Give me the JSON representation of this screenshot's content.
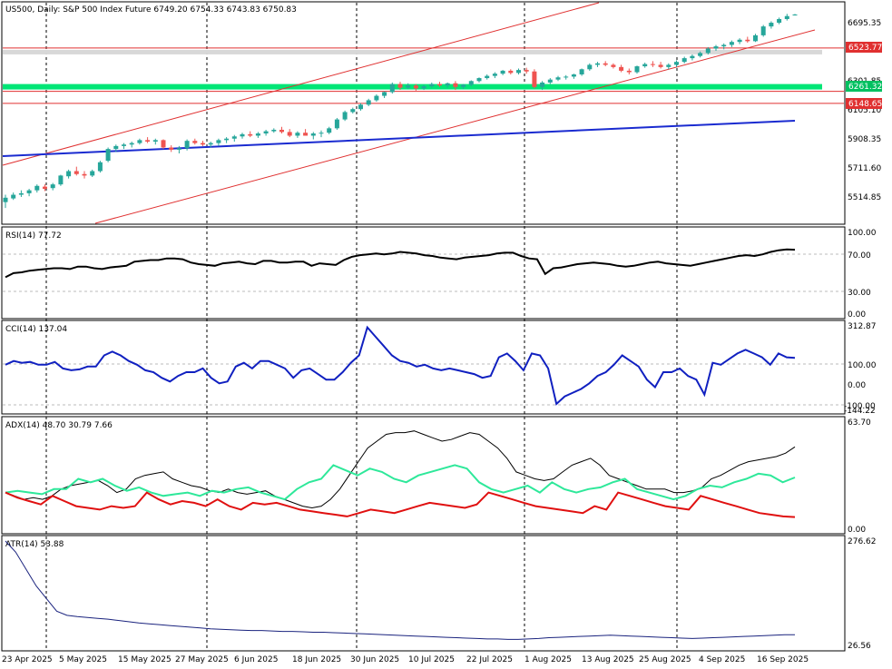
{
  "main": {
    "header": "US500, Daily:  S&P 500  Index Future  6749.20 6754.33 6743.83 6750.83",
    "y_labels": [
      "6695.35",
      "6301.85",
      "6105.10",
      "5908.35",
      "5711.60",
      "5514.85"
    ],
    "levels": [
      {
        "value": 6523.77,
        "label": "6523.77",
        "color": "#e03030"
      },
      {
        "value": 6261.32,
        "label": "6261.32",
        "color": "#00e676"
      },
      {
        "value": 6148.65,
        "label": "6148.65",
        "color": "#e03030"
      }
    ],
    "ylim": [
      5440,
      6810
    ]
  },
  "x_axis": {
    "labels": [
      "23 Apr 2025",
      "5 May 2025",
      "15 May 2025",
      "27 May 2025",
      "6 Jun 2025",
      "18 Jun 2025",
      "30 Jun 2025",
      "10 Jul 2025",
      "22 Jul 2025",
      "1 Aug 2025",
      "13 Aug 2025",
      "25 Aug 2025",
      "4 Sep 2025",
      "16 Sep 2025"
    ]
  },
  "rsi": {
    "header": "RSI(14) 77.72",
    "y_labels": [
      "100.00",
      "70.00",
      "30.00",
      "0.00"
    ]
  },
  "cci": {
    "header": "CCI(14) 137.04",
    "y_labels": [
      "312.87",
      "100.00",
      "0.00",
      "-100.00",
      "-144.22"
    ]
  },
  "adx": {
    "header": "ADX(14) 48.70 30.79 7.66",
    "y_labels": [
      "63.70",
      "0.00"
    ]
  },
  "atr": {
    "header": "ATR(14) 53.88",
    "y_labels": [
      "276.62",
      "26.56"
    ]
  },
  "colors": {
    "bull": "#26a69a",
    "bear": "#ef5350",
    "channel": "#e03030",
    "trend": "#1a2bd0",
    "rsi": "#000000",
    "cci": "#1020c0",
    "adx": "#000000",
    "di_plus": "#2ee89a",
    "di_minus": "#e01010",
    "atr": "#1a237e"
  },
  "chart_data": [
    {
      "type": "candlestick",
      "title": "US500, Daily: S&P 500 Index Future",
      "ylim": [
        5440,
        6810
      ],
      "candles": [
        [
          5480,
          5530,
          5440,
          5510
        ],
        [
          5505,
          5545,
          5495,
          5530
        ],
        [
          5530,
          5560,
          5515,
          5540
        ],
        [
          5540,
          5570,
          5520,
          5560
        ],
        [
          5560,
          5600,
          5545,
          5590
        ],
        [
          5585,
          5600,
          5555,
          5570
        ],
        [
          5575,
          5610,
          5560,
          5600
        ],
        [
          5600,
          5665,
          5590,
          5660
        ],
        [
          5655,
          5700,
          5640,
          5690
        ],
        [
          5690,
          5720,
          5660,
          5670
        ],
        [
          5670,
          5690,
          5640,
          5660
        ],
        [
          5660,
          5700,
          5650,
          5690
        ],
        [
          5690,
          5760,
          5680,
          5750
        ],
        [
          5760,
          5850,
          5750,
          5840
        ],
        [
          5840,
          5870,
          5820,
          5860
        ],
        [
          5860,
          5880,
          5840,
          5870
        ],
        [
          5870,
          5890,
          5850,
          5880
        ],
        [
          5880,
          5910,
          5870,
          5900
        ],
        [
          5900,
          5920,
          5880,
          5890
        ],
        [
          5890,
          5910,
          5870,
          5900
        ],
        [
          5900,
          5905,
          5840,
          5850
        ],
        [
          5850,
          5865,
          5820,
          5835
        ],
        [
          5835,
          5860,
          5810,
          5845
        ],
        [
          5845,
          5905,
          5830,
          5895
        ],
        [
          5895,
          5910,
          5870,
          5880
        ],
        [
          5880,
          5895,
          5860,
          5870
        ],
        [
          5870,
          5890,
          5850,
          5880
        ],
        [
          5880,
          5910,
          5860,
          5900
        ],
        [
          5900,
          5920,
          5880,
          5910
        ],
        [
          5910,
          5935,
          5890,
          5925
        ],
        [
          5925,
          5950,
          5910,
          5940
        ],
        [
          5940,
          5960,
          5920,
          5930
        ],
        [
          5930,
          5955,
          5915,
          5945
        ],
        [
          5945,
          5970,
          5930,
          5960
        ],
        [
          5960,
          5980,
          5950,
          5970
        ],
        [
          5970,
          5990,
          5945,
          5955
        ],
        [
          5955,
          5975,
          5920,
          5930
        ],
        [
          5930,
          5960,
          5915,
          5950
        ],
        [
          5950,
          5975,
          5930,
          5930
        ],
        [
          5930,
          5955,
          5905,
          5945
        ],
        [
          5945,
          5965,
          5920,
          5950
        ],
        [
          5950,
          5990,
          5940,
          5980
        ],
        [
          5980,
          6050,
          5970,
          6040
        ],
        [
          6040,
          6100,
          6030,
          6090
        ],
        [
          6090,
          6120,
          6080,
          6110
        ],
        [
          6110,
          6150,
          6100,
          6140
        ],
        [
          6140,
          6180,
          6130,
          6170
        ],
        [
          6170,
          6210,
          6160,
          6200
        ],
        [
          6200,
          6230,
          6185,
          6225
        ],
        [
          6225,
          6290,
          6215,
          6280
        ],
        [
          6280,
          6295,
          6240,
          6255
        ],
        [
          6255,
          6285,
          6245,
          6270
        ],
        [
          6270,
          6280,
          6235,
          6250
        ],
        [
          6250,
          6275,
          6240,
          6265
        ],
        [
          6265,
          6290,
          6255,
          6280
        ],
        [
          6280,
          6295,
          6260,
          6270
        ],
        [
          6270,
          6290,
          6255,
          6285
        ],
        [
          6285,
          6300,
          6240,
          6260
        ],
        [
          6260,
          6280,
          6245,
          6275
        ],
        [
          6275,
          6305,
          6265,
          6300
        ],
        [
          6300,
          6325,
          6290,
          6320
        ],
        [
          6320,
          6345,
          6310,
          6335
        ],
        [
          6335,
          6360,
          6320,
          6350
        ],
        [
          6350,
          6375,
          6340,
          6370
        ],
        [
          6370,
          6380,
          6345,
          6355
        ],
        [
          6355,
          6385,
          6345,
          6375
        ],
        [
          6375,
          6390,
          6350,
          6365
        ],
        [
          6365,
          6380,
          6250,
          6260
        ],
        [
          6260,
          6300,
          6240,
          6290
        ],
        [
          6290,
          6320,
          6280,
          6310
        ],
        [
          6310,
          6335,
          6300,
          6325
        ],
        [
          6325,
          6340,
          6310,
          6330
        ],
        [
          6330,
          6350,
          6315,
          6345
        ],
        [
          6345,
          6385,
          6335,
          6380
        ],
        [
          6380,
          6420,
          6370,
          6410
        ],
        [
          6410,
          6430,
          6395,
          6420
        ],
        [
          6420,
          6435,
          6400,
          6410
        ],
        [
          6410,
          6420,
          6385,
          6395
        ],
        [
          6395,
          6410,
          6360,
          6370
        ],
        [
          6370,
          6385,
          6345,
          6360
        ],
        [
          6360,
          6405,
          6350,
          6400
        ],
        [
          6400,
          6425,
          6390,
          6415
        ],
        [
          6415,
          6435,
          6395,
          6410
        ],
        [
          6410,
          6430,
          6385,
          6395
        ],
        [
          6395,
          6420,
          6380,
          6410
        ],
        [
          6410,
          6440,
          6395,
          6430
        ],
        [
          6430,
          6465,
          6420,
          6455
        ],
        [
          6455,
          6480,
          6440,
          6470
        ],
        [
          6470,
          6500,
          6460,
          6490
        ],
        [
          6490,
          6530,
          6480,
          6520
        ],
        [
          6520,
          6545,
          6505,
          6535
        ],
        [
          6535,
          6555,
          6515,
          6545
        ],
        [
          6545,
          6575,
          6530,
          6565
        ],
        [
          6565,
          6590,
          6550,
          6580
        ],
        [
          6580,
          6600,
          6560,
          6570
        ],
        [
          6570,
          6620,
          6565,
          6610
        ],
        [
          6610,
          6680,
          6600,
          6670
        ],
        [
          6670,
          6705,
          6655,
          6695
        ],
        [
          6695,
          6730,
          6685,
          6720
        ],
        [
          6720,
          6755,
          6710,
          6740
        ],
        [
          6749.2,
          6754.33,
          6743.83,
          6750.83
        ]
      ],
      "horizontal_levels": [
        6523.77,
        6261.32,
        6148.65
      ],
      "y_tick_labels": [
        "6695.35",
        "6301.85",
        "6105.10",
        "5908.35",
        "5711.60",
        "5514.85"
      ]
    },
    {
      "type": "line",
      "title": "RSI(14) 77.72",
      "ylim": [
        0,
        100
      ],
      "series": [
        {
          "values": [
            44,
            49,
            50,
            52,
            53,
            54,
            55,
            55,
            54,
            57,
            57,
            55,
            54,
            56,
            57,
            58,
            63,
            64,
            65,
            65,
            67,
            67,
            66,
            62,
            60,
            59,
            58,
            61,
            62,
            63,
            61,
            60,
            64,
            64,
            62,
            62,
            63,
            63,
            58,
            61,
            60,
            59,
            65,
            69,
            71,
            72,
            73,
            72,
            73,
            75,
            74,
            73,
            71,
            70,
            68,
            67,
            66,
            68,
            69,
            70,
            71,
            73,
            74,
            74,
            70,
            67,
            66,
            48,
            55,
            56,
            58,
            60,
            61,
            62,
            61,
            60,
            58,
            57,
            58,
            60,
            62,
            63,
            61,
            60,
            59,
            58,
            60,
            62,
            64,
            66,
            68,
            70,
            71,
            70,
            72,
            75,
            77,
            78,
            77.72
          ]
        }
      ]
    },
    {
      "type": "line",
      "title": "CCI(14) 137.04",
      "ylim": [
        -144.22,
        312.87
      ],
      "series": [
        {
          "values": [
            100,
            120,
            110,
            115,
            100,
            100,
            115,
            80,
            70,
            75,
            90,
            90,
            150,
            170,
            150,
            120,
            100,
            70,
            60,
            30,
            10,
            40,
            60,
            60,
            80,
            30,
            0,
            10,
            90,
            110,
            80,
            120,
            120,
            100,
            80,
            30,
            70,
            80,
            50,
            20,
            20,
            60,
            110,
            150,
            300,
            250,
            200,
            150,
            120,
            110,
            90,
            100,
            80,
            70,
            80,
            70,
            60,
            50,
            30,
            40,
            140,
            160,
            120,
            70,
            160,
            150,
            80,
            -110,
            -70,
            -50,
            -30,
            0,
            40,
            60,
            100,
            150,
            120,
            90,
            20,
            -20,
            60,
            60,
            80,
            40,
            20,
            -60,
            110,
            100,
            130,
            160,
            180,
            160,
            140,
            100,
            160,
            140,
            137.04
          ]
        }
      ]
    },
    {
      "type": "line",
      "title": "ADX(14) 48.70 30.79 7.66",
      "ylim": [
        0,
        63.7
      ],
      "series": [
        {
          "values": [
            22,
            20,
            18,
            19,
            18,
            20,
            24,
            26,
            27,
            28,
            29,
            26,
            22,
            24,
            30,
            32,
            33,
            34,
            30,
            28,
            26,
            25,
            23,
            22,
            24,
            22,
            21,
            22,
            23,
            20,
            18,
            16,
            14,
            13,
            14,
            18,
            24,
            32,
            40,
            48,
            52,
            56,
            57,
            57,
            58,
            56,
            54,
            52,
            53,
            55,
            57,
            56,
            52,
            48,
            42,
            34,
            32,
            30,
            29,
            30,
            34,
            38,
            40,
            42,
            38,
            32,
            30,
            28,
            26,
            24,
            24,
            24,
            22,
            22,
            23,
            25,
            30,
            32,
            35,
            38,
            40,
            41,
            42,
            43,
            45,
            48.7
          ]
        },
        {
          "values": [
            22,
            23,
            22,
            21,
            24,
            24,
            30,
            28,
            30,
            26,
            23,
            25,
            22,
            20,
            21,
            22,
            20,
            23,
            22,
            24,
            25,
            22,
            20,
            18,
            24,
            28,
            30,
            38,
            35,
            32,
            36,
            34,
            30,
            28,
            32,
            34,
            36,
            38,
            36,
            28,
            24,
            22,
            24,
            26,
            22,
            28,
            24,
            22,
            24,
            25,
            28,
            30,
            24,
            22,
            20,
            18,
            20,
            24,
            26,
            25,
            28,
            30,
            33,
            32,
            28,
            30.79
          ]
        },
        {
          "values": [
            22,
            19,
            17,
            15,
            20,
            17,
            14,
            13,
            12,
            14,
            13,
            14,
            22,
            18,
            15,
            17,
            16,
            14,
            18,
            14,
            12,
            16,
            15,
            16,
            14,
            12,
            11,
            10,
            9,
            8,
            10,
            12,
            11,
            10,
            12,
            14,
            16,
            15,
            14,
            13,
            15,
            22,
            20,
            18,
            16,
            14,
            13,
            12,
            11,
            10,
            14,
            12,
            22,
            20,
            18,
            16,
            14,
            13,
            12,
            20,
            18,
            16,
            14,
            12,
            10,
            9,
            8,
            7.66
          ]
        }
      ]
    },
    {
      "type": "line",
      "title": "ATR(14) 53.88",
      "ylim": [
        26.56,
        276.62
      ],
      "series": [
        {
          "values": [
            276.62,
            250,
            210,
            170,
            140,
            110,
            100,
            97,
            95,
            93,
            91,
            88,
            85,
            82,
            80,
            78,
            76,
            74,
            72,
            70,
            68,
            67,
            66,
            65,
            64,
            64,
            63,
            62,
            62,
            61,
            60,
            60,
            59,
            58,
            57,
            56,
            55,
            54,
            53,
            52,
            51,
            50,
            49,
            48,
            47,
            46,
            45,
            44,
            44,
            43,
            43,
            44,
            45,
            47,
            48,
            49,
            50,
            51,
            52,
            53,
            52,
            51,
            50,
            49,
            48,
            47,
            46,
            45,
            46,
            47,
            48,
            49,
            50,
            51,
            52,
            53,
            54,
            53.88
          ]
        }
      ]
    }
  ]
}
